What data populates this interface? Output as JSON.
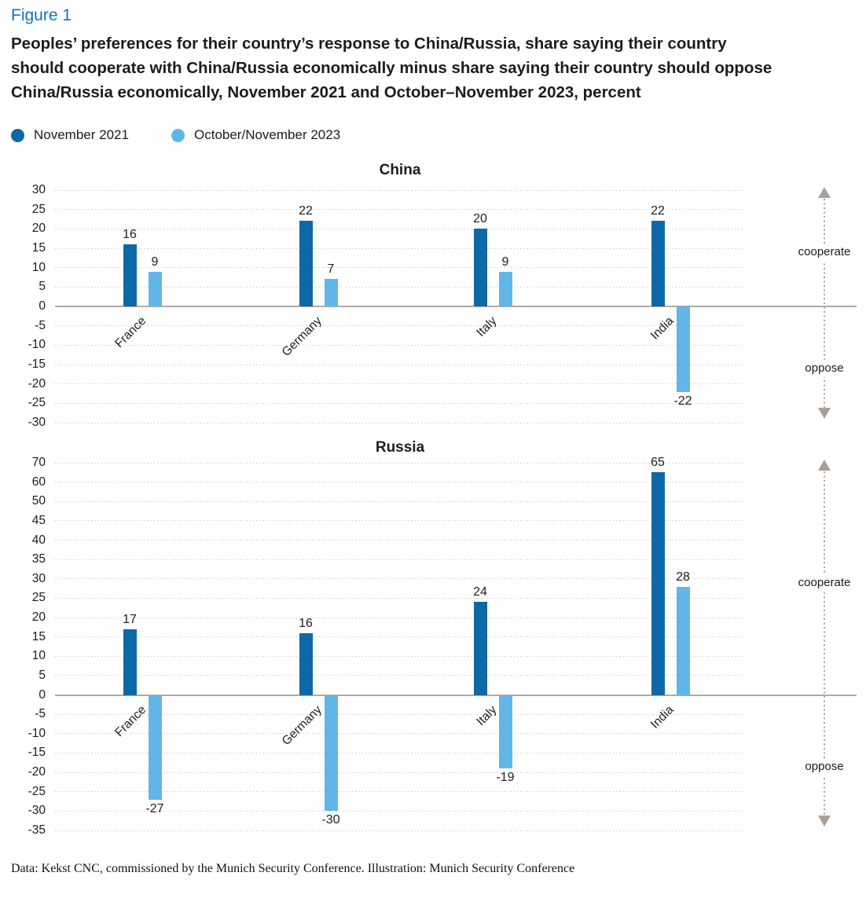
{
  "figure_label": "Figure 1",
  "title": "Peoples’ preferences for their country’s response to China/Russia, share saying their country\nshould cooperate with China/Russia economically minus share saying their country should oppose\nChina/Russia economically, November 2021 and October–November 2023, percent",
  "legend": {
    "items": [
      {
        "label": "November 2021",
        "color": "#0d68a8"
      },
      {
        "label": "October/November 2023",
        "color": "#61b6e8"
      }
    ]
  },
  "chart_data": {
    "type": "bar",
    "unit": "percent",
    "grid": "dotted horizontal gridlines, no vertical axis line",
    "legend_position": "top-left",
    "categories": [
      "France",
      "Germany",
      "Italy",
      "India"
    ],
    "series_names": [
      "November 2021",
      "October/November 2023"
    ],
    "charts": [
      {
        "title": "China",
        "y_ticks": [
          30,
          25,
          20,
          15,
          10,
          5,
          0,
          -5,
          -10,
          -15,
          -20,
          -25,
          -30
        ],
        "ylim": [
          -30,
          30
        ],
        "series": [
          {
            "name": "November 2021",
            "color": "#0d68a8",
            "values": [
              16,
              22,
              20,
              22
            ]
          },
          {
            "name": "October/November 2023",
            "color": "#61b6e8",
            "values": [
              9,
              7,
              9,
              -22
            ]
          }
        ],
        "annotation_up": "cooperate",
        "annotation_down": "oppose"
      },
      {
        "title": "Russia",
        "y_ticks": [
          70,
          60,
          50,
          45,
          40,
          35,
          30,
          25,
          20,
          15,
          10,
          5,
          0,
          -5,
          -10,
          -15,
          -20,
          -25,
          -30,
          -35
        ],
        "ylim": [
          -35,
          70
        ],
        "series": [
          {
            "name": "November 2021",
            "color": "#0d68a8",
            "values": [
              17,
              16,
              24,
              65
            ]
          },
          {
            "name": "October/November 2023",
            "color": "#61b6e8",
            "values": [
              -27,
              -30,
              -19,
              28
            ]
          }
        ],
        "annotation_up": "cooperate",
        "annotation_down": "oppose"
      }
    ]
  },
  "footer": "Data: Kekst CNC, commissioned by the Munich Security Conference. Illustration: Munich Security Conference",
  "colors": {
    "figure_label": "#1573b5",
    "series_2021": "#0d68a8",
    "series_2023": "#61b6e8",
    "axis_line": "#b2a9a2",
    "gridline": "#c9c4bf",
    "arrow": "#a9a099",
    "text": "#1c1c1c"
  }
}
